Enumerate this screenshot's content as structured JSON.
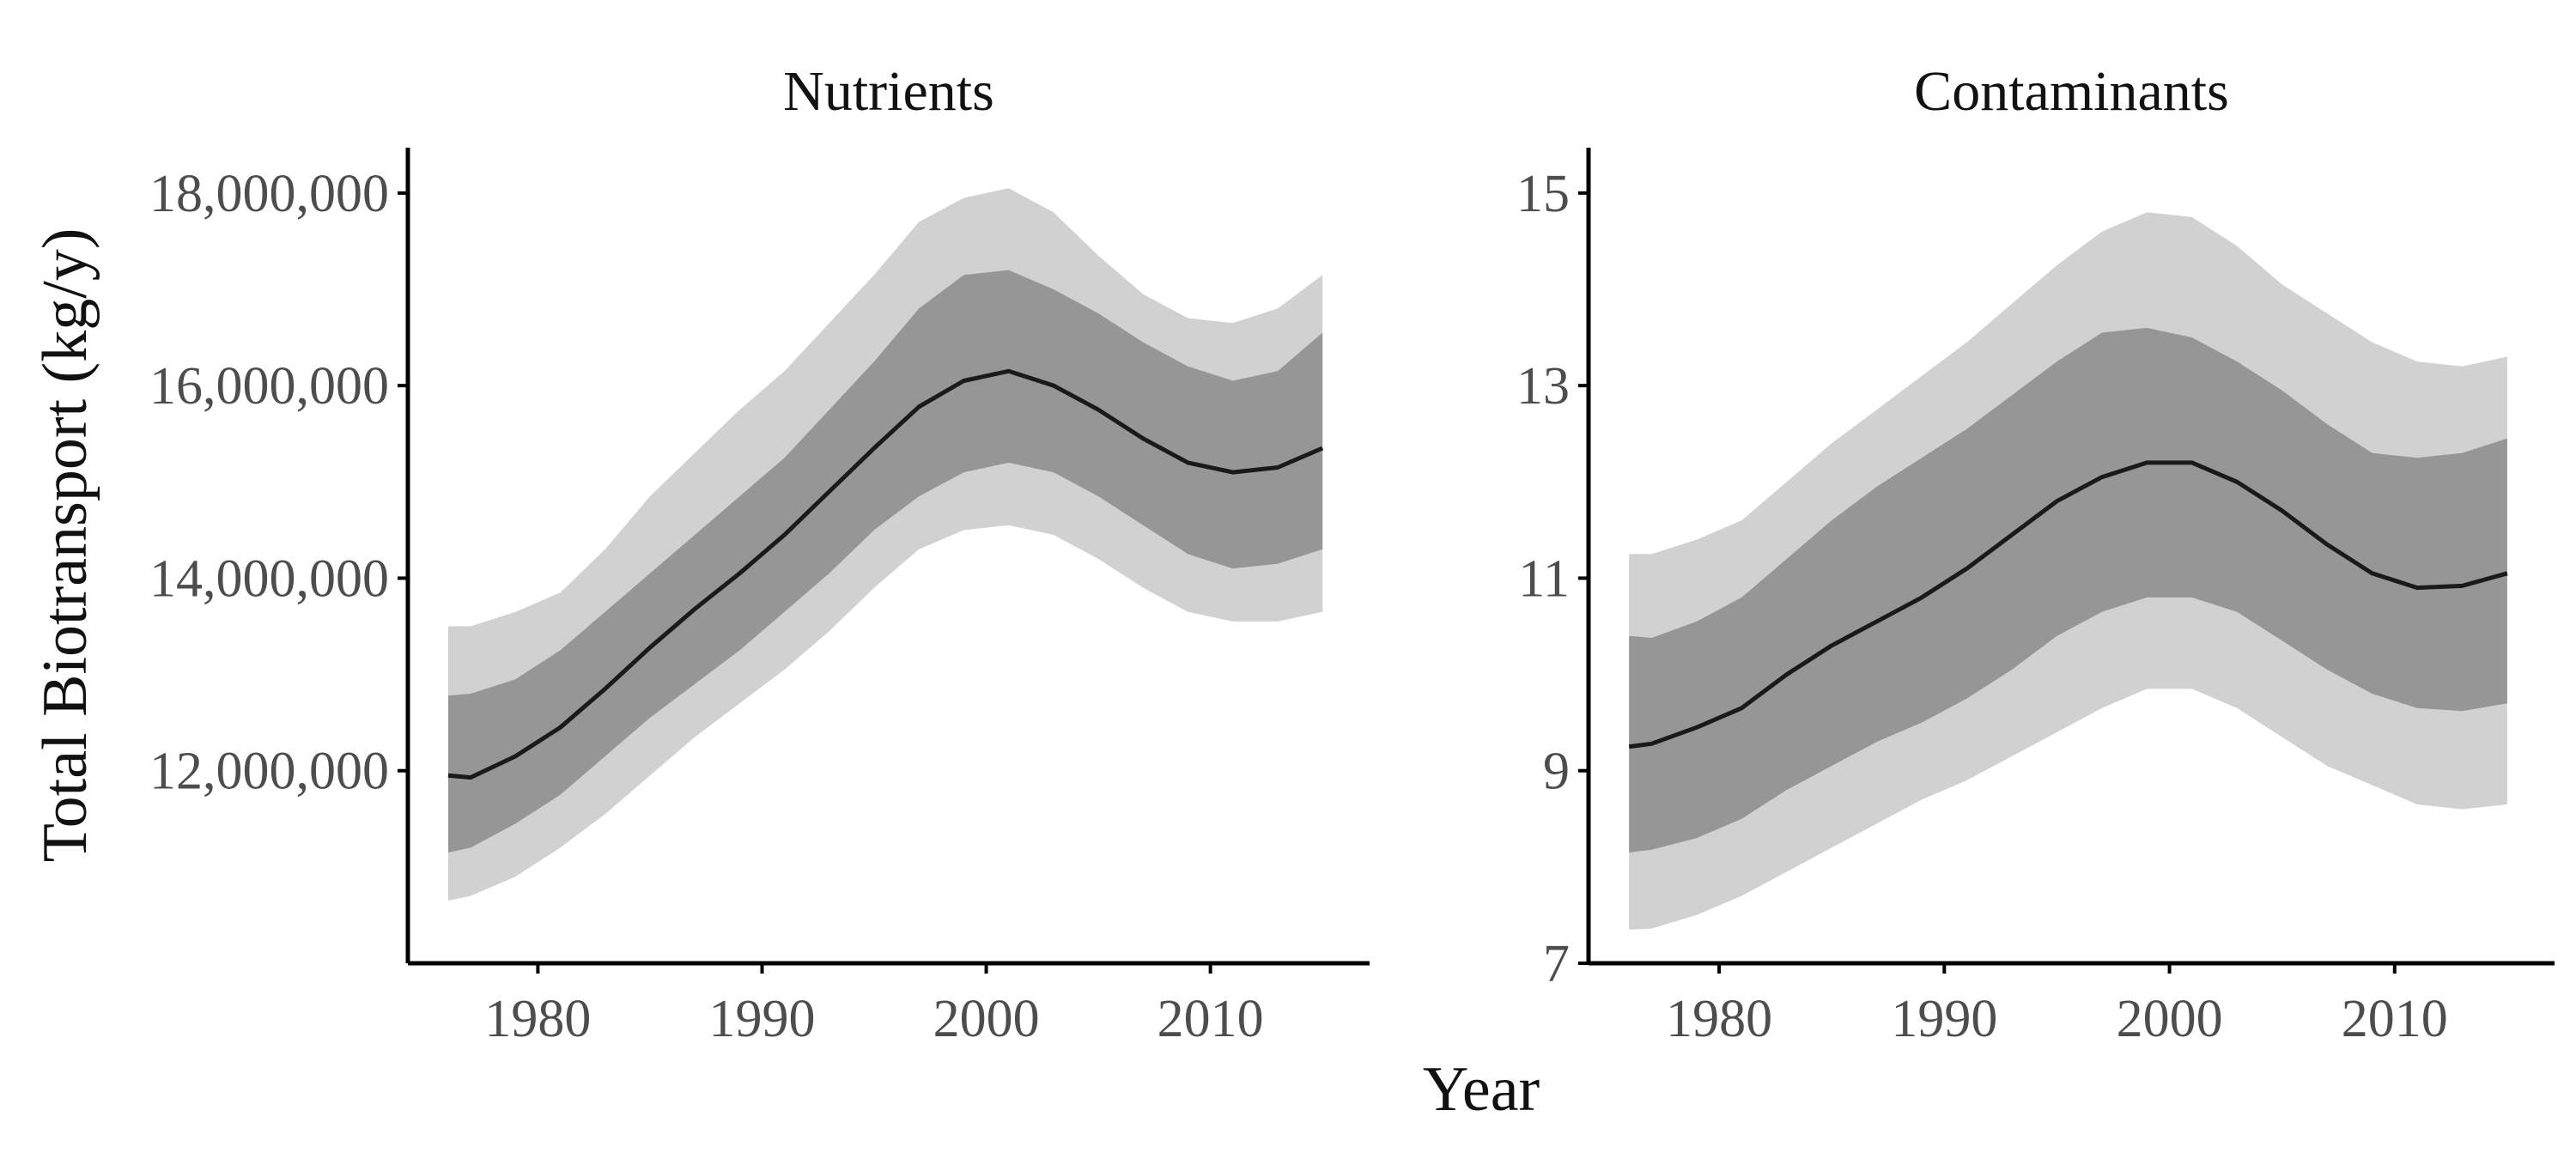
{
  "figure": {
    "ylabel": "Total Biotransport (kg/y)",
    "xlabel": "Year"
  },
  "chart_data": [
    {
      "type": "line",
      "title": "Nutrients",
      "xlabel": "Year",
      "ylabel": "Total Biotransport (kg/y)",
      "xlim": [
        1974.2,
        2017.1
      ],
      "ylim": [
        10000000,
        18400000
      ],
      "xticks": [
        1980,
        1990,
        2000,
        2010
      ],
      "yticks": [
        12000000,
        14000000,
        16000000,
        18000000
      ],
      "ytick_labels": [
        "12,000,000",
        "14,000,000",
        "16,000,000",
        "18,000,000"
      ],
      "grid": false,
      "x": [
        1976,
        1977,
        1979,
        1981,
        1983,
        1985,
        1987,
        1989,
        1991,
        1993,
        1995,
        1997,
        1999,
        2001,
        2003,
        2005,
        2007,
        2009,
        2011,
        2013,
        2015
      ],
      "series": [
        {
          "role": "mean",
          "color": "#1a1a1a",
          "values": [
            11950000,
            11930000,
            12150000,
            12450000,
            12850000,
            13280000,
            13680000,
            14050000,
            14450000,
            14900000,
            15350000,
            15780000,
            16050000,
            16150000,
            16000000,
            15750000,
            15450000,
            15200000,
            15100000,
            15150000,
            15350000
          ]
        },
        {
          "role": "inner band",
          "color": "#969696",
          "lower": [
            11150000,
            11200000,
            11450000,
            11750000,
            12150000,
            12550000,
            12900000,
            13250000,
            13650000,
            14050000,
            14500000,
            14850000,
            15100000,
            15200000,
            15100000,
            14850000,
            14550000,
            14250000,
            14100000,
            14150000,
            14300000
          ],
          "upper": [
            12780000,
            12800000,
            12950000,
            13250000,
            13650000,
            14050000,
            14450000,
            14850000,
            15250000,
            15750000,
            16250000,
            16800000,
            17150000,
            17200000,
            17000000,
            16750000,
            16450000,
            16200000,
            16050000,
            16150000,
            16550000
          ]
        },
        {
          "role": "outer band",
          "color": "#d1d1d1",
          "lower": [
            10650000,
            10700000,
            10900000,
            11200000,
            11550000,
            11950000,
            12350000,
            12700000,
            13050000,
            13450000,
            13900000,
            14300000,
            14500000,
            14550000,
            14450000,
            14200000,
            13900000,
            13650000,
            13550000,
            13550000,
            13650000
          ],
          "upper": [
            13500000,
            13500000,
            13650000,
            13850000,
            14300000,
            14850000,
            15300000,
            15750000,
            16150000,
            16650000,
            17150000,
            17700000,
            17950000,
            18050000,
            17800000,
            17350000,
            16950000,
            16700000,
            16650000,
            16800000,
            17150000
          ]
        }
      ]
    },
    {
      "type": "line",
      "title": "Contaminants",
      "xlabel": "Year",
      "ylabel": "Total Biotransport (kg/y)",
      "xlim": [
        1974.2,
        2017.1
      ],
      "ylim": [
        7,
        15.4
      ],
      "xticks": [
        1980,
        1990,
        2000,
        2010
      ],
      "yticks": [
        7,
        9,
        11,
        13,
        15
      ],
      "ytick_labels": [
        "7",
        "9",
        "11",
        "13",
        "15"
      ],
      "grid": false,
      "x": [
        1976,
        1977,
        1979,
        1981,
        1983,
        1985,
        1987,
        1989,
        1991,
        1993,
        1995,
        1997,
        1999,
        2001,
        2003,
        2005,
        2007,
        2009,
        2011,
        2013,
        2015
      ],
      "series": [
        {
          "role": "mean",
          "color": "#1a1a1a",
          "values": [
            9.25,
            9.28,
            9.45,
            9.65,
            10.0,
            10.3,
            10.55,
            10.8,
            11.1,
            11.45,
            11.8,
            12.05,
            12.2,
            12.2,
            12.0,
            11.7,
            11.35,
            11.05,
            10.9,
            10.92,
            11.05
          ]
        },
        {
          "role": "inner band",
          "color": "#969696",
          "lower": [
            8.15,
            8.18,
            8.3,
            8.5,
            8.8,
            9.05,
            9.3,
            9.5,
            9.75,
            10.05,
            10.4,
            10.65,
            10.8,
            10.8,
            10.65,
            10.35,
            10.05,
            9.8,
            9.65,
            9.62,
            9.7
          ],
          "upper": [
            10.4,
            10.38,
            10.55,
            10.8,
            11.2,
            11.6,
            11.95,
            12.25,
            12.55,
            12.9,
            13.25,
            13.55,
            13.6,
            13.5,
            13.25,
            12.95,
            12.6,
            12.3,
            12.25,
            12.3,
            12.45
          ]
        },
        {
          "role": "outer band",
          "color": "#d1d1d1",
          "lower": [
            7.35,
            7.36,
            7.5,
            7.7,
            7.95,
            8.2,
            8.45,
            8.7,
            8.9,
            9.15,
            9.4,
            9.65,
            9.85,
            9.85,
            9.65,
            9.35,
            9.05,
            8.85,
            8.65,
            8.6,
            8.65
          ],
          "upper": [
            11.25,
            11.25,
            11.4,
            11.6,
            12.0,
            12.4,
            12.75,
            13.1,
            13.45,
            13.85,
            14.25,
            14.6,
            14.8,
            14.75,
            14.45,
            14.05,
            13.75,
            13.45,
            13.25,
            13.2,
            13.3
          ]
        }
      ]
    }
  ]
}
